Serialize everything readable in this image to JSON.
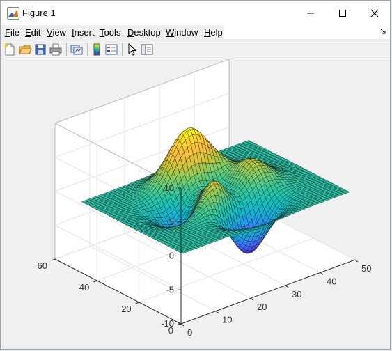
{
  "window": {
    "title": "Figure 1"
  },
  "menu": [
    {
      "pre": "",
      "key": "F",
      "post": "ile"
    },
    {
      "pre": "",
      "key": "E",
      "post": "dit"
    },
    {
      "pre": "",
      "key": "V",
      "post": "iew"
    },
    {
      "pre": "",
      "key": "I",
      "post": "nsert"
    },
    {
      "pre": "",
      "key": "T",
      "post": "ools"
    },
    {
      "pre": "",
      "key": "D",
      "post": "esktop"
    },
    {
      "pre": "",
      "key": "W",
      "post": "indow"
    },
    {
      "pre": "",
      "key": "H",
      "post": "elp"
    }
  ],
  "toolbar": [
    {
      "icon": "new-figure-icon"
    },
    {
      "icon": "open-file-icon"
    },
    {
      "icon": "save-icon"
    },
    {
      "icon": "print-icon"
    },
    {
      "icon": "link-plot-icon"
    },
    {
      "icon": "insert-colorbar-icon"
    },
    {
      "icon": "insert-legend-icon"
    },
    {
      "icon": "edit-plot-icon"
    },
    {
      "icon": "property-inspector-icon"
    }
  ],
  "chart_data": {
    "type": "surface",
    "function": "peaks",
    "colormap": "parula",
    "grid": true,
    "title": "",
    "xlabel": "",
    "ylabel": "",
    "zlabel": "",
    "xlim": [
      0,
      50
    ],
    "ylim": [
      0,
      60
    ],
    "zlim": [
      -10,
      10
    ],
    "x_ticks": [
      "0",
      "10",
      "20",
      "30",
      "40",
      "50"
    ],
    "y_ticks": [
      "0",
      "20",
      "40",
      "60"
    ],
    "z_ticks": [
      "10",
      "5",
      "0",
      "-5",
      "-10"
    ],
    "mesh_size": [
      49,
      49
    ],
    "z_max": 8.1,
    "z_min": -6.5
  }
}
